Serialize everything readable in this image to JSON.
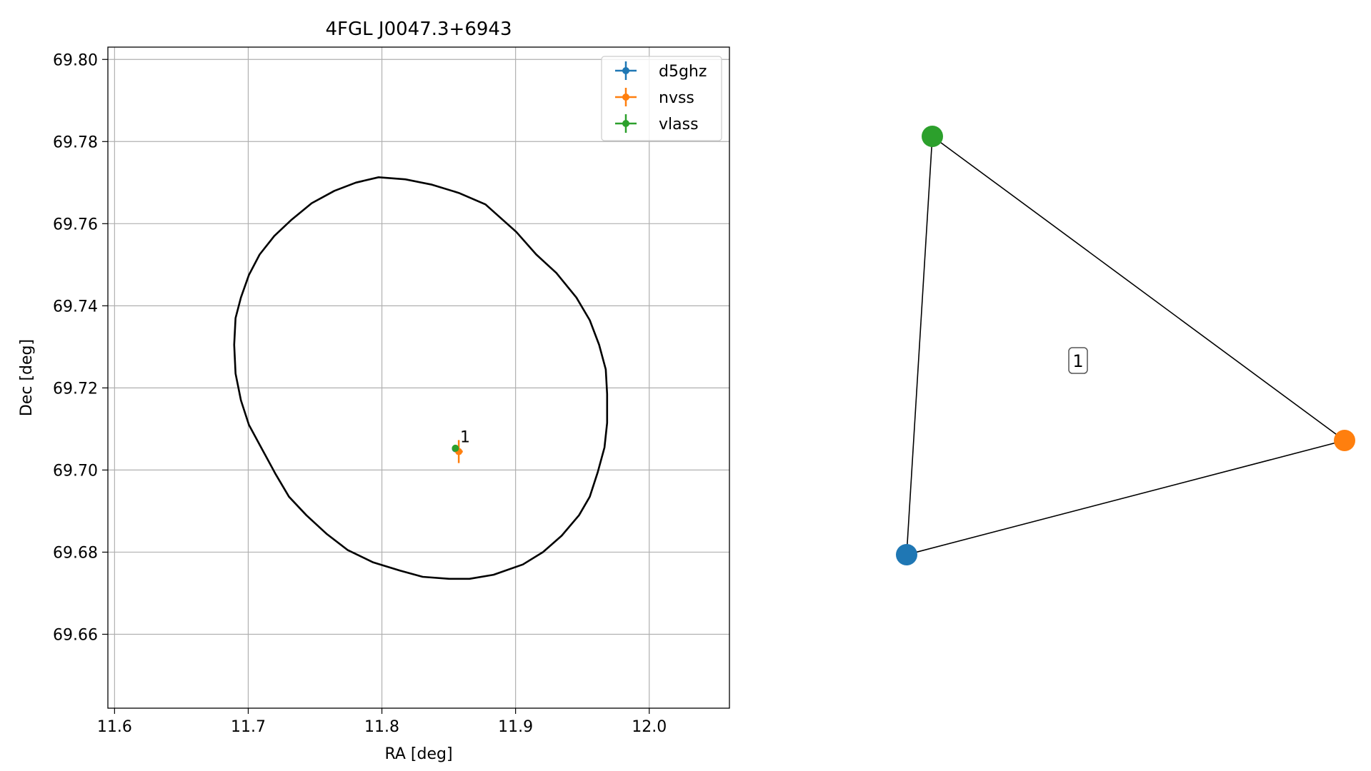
{
  "chart_data": [
    {
      "type": "scatter",
      "title": "4FGL J0047.3+6943",
      "xlabel": "RA [deg]",
      "ylabel": "Dec [deg]",
      "xlim": [
        11.595,
        12.06
      ],
      "ylim": [
        69.642,
        69.803
      ],
      "grid": true,
      "legend_position": "top-right",
      "x_ticks": [
        11.6,
        11.7,
        11.8,
        11.9,
        12.0
      ],
      "x_tick_labels": [
        "11.6",
        "11.7",
        "11.8",
        "11.9",
        "12.0"
      ],
      "y_ticks": [
        69.66,
        69.68,
        69.7,
        69.72,
        69.74,
        69.76,
        69.78,
        69.8
      ],
      "y_tick_labels": [
        "69.66",
        "69.68",
        "69.70",
        "69.72",
        "69.74",
        "69.76",
        "69.78",
        "69.80"
      ],
      "series": [
        {
          "name": "d5ghz",
          "color": "#1f77b4",
          "points": [
            {
              "x": 11.855,
              "y": 69.7052,
              "xerr": 0.0015,
              "yerr": 0.0008
            }
          ]
        },
        {
          "name": "nvss",
          "color": "#ff7f0e",
          "points": [
            {
              "x": 11.8575,
              "y": 69.7045,
              "xerr": 0.003,
              "yerr": 0.0028
            }
          ]
        },
        {
          "name": "vlass",
          "color": "#2ca02c",
          "points": [
            {
              "x": 11.855,
              "y": 69.7053,
              "xerr": 0.0008,
              "yerr": 0.0005
            }
          ]
        }
      ],
      "annotations": [
        {
          "text": "1",
          "x": 11.8585,
          "y": 69.7068
        }
      ],
      "ellipse": {
        "color": "#000000",
        "points": [
          [
            11.7975,
            69.7713
          ],
          [
            11.8175,
            69.7708
          ],
          [
            11.8375,
            69.7695
          ],
          [
            11.8575,
            69.7675
          ],
          [
            11.8775,
            69.7647
          ],
          [
            11.9005,
            69.758
          ],
          [
            11.9155,
            69.7525
          ],
          [
            11.9305,
            69.748
          ],
          [
            11.9455,
            69.742
          ],
          [
            11.9555,
            69.7365
          ],
          [
            11.9625,
            69.7305
          ],
          [
            11.9675,
            69.7245
          ],
          [
            11.9685,
            69.7185
          ],
          [
            11.9685,
            69.7115
          ],
          [
            11.9665,
            69.7055
          ],
          [
            11.9615,
            69.6995
          ],
          [
            11.9555,
            69.6935
          ],
          [
            11.9475,
            69.689
          ],
          [
            11.9345,
            69.684
          ],
          [
            11.9205,
            69.68
          ],
          [
            11.9055,
            69.677
          ],
          [
            11.8835,
            69.6745
          ],
          [
            11.8655,
            69.6735
          ],
          [
            11.8505,
            69.6735
          ],
          [
            11.8305,
            69.674
          ],
          [
            11.8135,
            69.6755
          ],
          [
            11.7935,
            69.6775
          ],
          [
            11.7745,
            69.6805
          ],
          [
            11.7585,
            69.6845
          ],
          [
            11.7435,
            69.689
          ],
          [
            11.7305,
            69.6935
          ],
          [
            11.7205,
            69.699
          ],
          [
            11.7105,
            69.705
          ],
          [
            11.7005,
            69.711
          ],
          [
            11.6945,
            69.717
          ],
          [
            11.6905,
            69.7235
          ],
          [
            11.6895,
            69.7305
          ],
          [
            11.6905,
            69.737
          ],
          [
            11.6945,
            69.742
          ],
          [
            11.7005,
            69.7475
          ],
          [
            11.7085,
            69.7525
          ],
          [
            11.7195,
            69.757
          ],
          [
            11.7325,
            69.761
          ],
          [
            11.7475,
            69.765
          ],
          [
            11.7645,
            69.768
          ],
          [
            11.7805,
            69.77
          ]
        ]
      }
    },
    {
      "type": "diagram",
      "nodes": [
        {
          "id": "d5ghz",
          "color": "#1f77b4"
        },
        {
          "id": "nvss",
          "color": "#ff7f0e"
        },
        {
          "id": "vlass",
          "color": "#2ca02c"
        }
      ],
      "edges": [
        [
          "vlass",
          "nvss"
        ],
        [
          "vlass",
          "d5ghz"
        ],
        [
          "d5ghz",
          "nvss"
        ]
      ],
      "center_label": "1"
    }
  ]
}
